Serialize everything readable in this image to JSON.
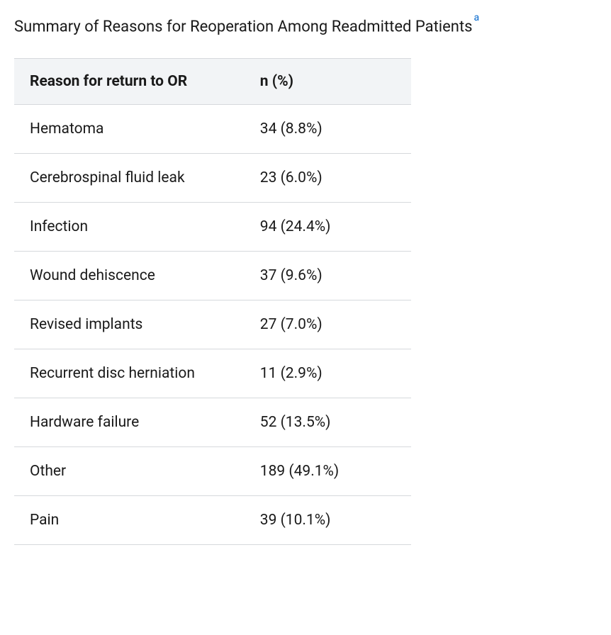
{
  "title": "Summary of Reasons for Reoperation Among Readmitted Patients",
  "footnote_marker": "a",
  "table": {
    "columns": [
      "Reason for return to OR",
      "n (%)"
    ],
    "rows": [
      {
        "reason": "Hematoma",
        "value": "34 (8.8%)"
      },
      {
        "reason": "Cerebrospinal fluid leak",
        "value": "23 (6.0%)"
      },
      {
        "reason": "Infection",
        "value": "94 (24.4%)"
      },
      {
        "reason": "Wound dehiscence",
        "value": "37 (9.6%)"
      },
      {
        "reason": "Revised implants",
        "value": "27 (7.0%)"
      },
      {
        "reason": "Recurrent disc herniation",
        "value": "11 (2.9%)"
      },
      {
        "reason": "Hardware failure",
        "value": "52 (13.5%)"
      },
      {
        "reason": "Other",
        "value": "189 (49.1%)"
      },
      {
        "reason": "Pain",
        "value": "39 (10.1%)"
      }
    ],
    "header_bg": "#f2f4f6",
    "border_color": "#d6d9dc",
    "text_color": "#1a1a1a",
    "link_color": "#0066cc",
    "font_size_title": 22,
    "font_size_cells": 21,
    "col_widths_pct": [
      58,
      42
    ]
  }
}
